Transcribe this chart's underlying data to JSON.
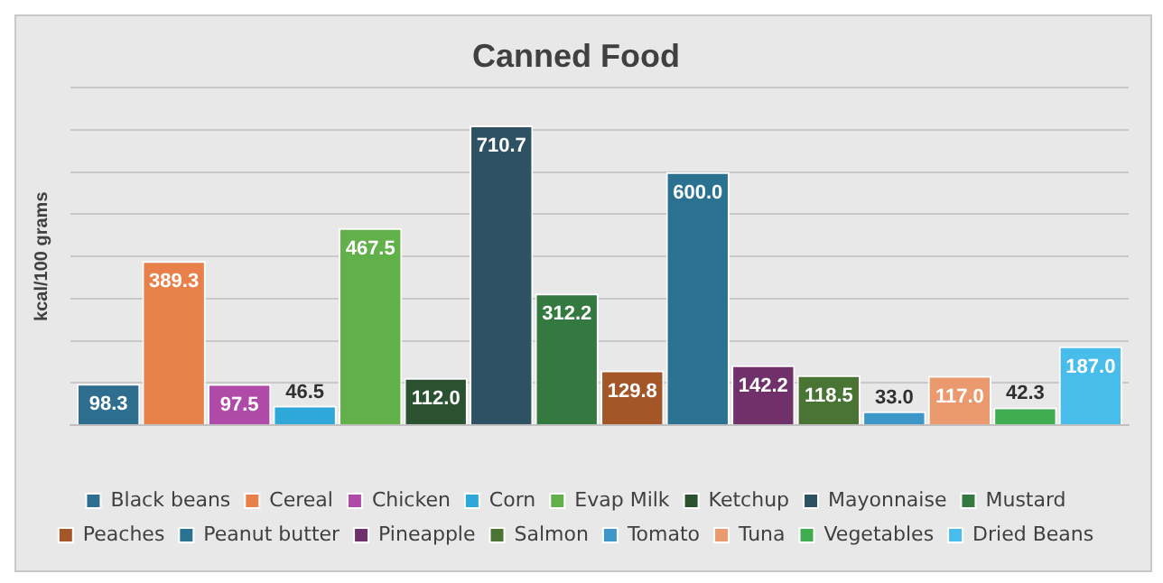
{
  "chart_data": {
    "type": "bar",
    "title": "Canned Food",
    "ylabel": "kcal/100 grams",
    "categories": [
      null
    ],
    "series": [
      {
        "name": "Black beans",
        "color": "#2e6e8e",
        "values": [
          98.3
        ],
        "value_labels": [
          "98.3"
        ]
      },
      {
        "name": "Cereal",
        "color": "#e8804a",
        "values": [
          389.3
        ],
        "value_labels": [
          "389.3"
        ]
      },
      {
        "name": "Chicken",
        "color": "#b04aa8",
        "values": [
          97.5
        ],
        "value_labels": [
          "97.5"
        ]
      },
      {
        "name": "Corn",
        "color": "#2ea8d8",
        "values": [
          46.5
        ],
        "value_labels": [
          "46.5"
        ]
      },
      {
        "name": "Evap Milk",
        "color": "#62b04a",
        "values": [
          467.5
        ],
        "value_labels": [
          "467.5"
        ]
      },
      {
        "name": "Ketchup",
        "color": "#2a5230",
        "values": [
          112.0
        ],
        "value_labels": [
          "112.0"
        ]
      },
      {
        "name": "Mayonnaise",
        "color": "#2e5264",
        "values": [
          710.7
        ],
        "value_labels": [
          "710.7"
        ]
      },
      {
        "name": "Mustard",
        "color": "#347a40",
        "values": [
          312.2
        ],
        "value_labels": [
          "312.2"
        ]
      },
      {
        "name": "Peaches",
        "color": "#a45628",
        "values": [
          129.8
        ],
        "value_labels": [
          "129.8"
        ]
      },
      {
        "name": "Peanut butter",
        "color": "#2a7290",
        "values": [
          600.0
        ],
        "value_labels": [
          "600.0"
        ]
      },
      {
        "name": "Pineapple",
        "color": "#70306a",
        "values": [
          142.2
        ],
        "value_labels": [
          "142.2"
        ]
      },
      {
        "name": "Salmon",
        "color": "#4a7434",
        "values": [
          118.5
        ],
        "value_labels": [
          "118.5"
        ]
      },
      {
        "name": "Tomato",
        "color": "#3c96c8",
        "values": [
          33.0
        ],
        "value_labels": [
          "33.0"
        ]
      },
      {
        "name": "Tuna",
        "color": "#eb9a70",
        "values": [
          117.0
        ],
        "value_labels": [
          "117.0"
        ]
      },
      {
        "name": "Vegetables",
        "color": "#40ac50",
        "values": [
          42.3
        ],
        "value_labels": [
          "42.3"
        ]
      },
      {
        "name": "Dried Beans",
        "color": "#48bceb",
        "values": [
          187.0
        ],
        "value_labels": [
          "187.0"
        ]
      }
    ],
    "ylim": [
      0,
      800
    ],
    "yticks": [
      {
        "value": 0,
        "label": null
      },
      {
        "value": 100,
        "label": null
      },
      {
        "value": 200,
        "label": null
      },
      {
        "value": 300,
        "label": null
      },
      {
        "value": 400,
        "label": null
      },
      {
        "value": 500,
        "label": null
      },
      {
        "value": 600,
        "label": null
      },
      {
        "value": 700,
        "label": null
      },
      {
        "value": 800,
        "label": null
      }
    ],
    "grid": "y",
    "legend": "bottom"
  }
}
